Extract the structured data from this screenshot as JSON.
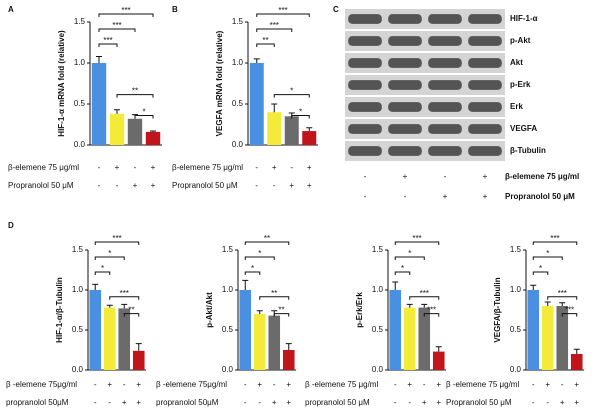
{
  "chart_data": [
    {
      "type": "bar",
      "panel": "A",
      "ylabel": "HIF-1-α mRNA fold (relative)",
      "values": [
        1.0,
        0.38,
        0.32,
        0.16
      ],
      "errors": [
        0.08,
        0.05,
        0.05,
        0.01
      ],
      "colors": [
        "#4a90e2",
        "#f4ea3a",
        "#6b6b6b",
        "#c0151b"
      ],
      "ylim": [
        0,
        1.5
      ],
      "yticks": [
        {
          "value": 0,
          "label": "0.0"
        },
        0.5,
        {
          "value": 1,
          "label": "1.0"
        },
        1.5
      ],
      "brackets": [
        {
          "pair": [
            0,
            3
          ],
          "label": "***"
        },
        {
          "pair": [
            0,
            2
          ],
          "label": "***"
        },
        {
          "pair": [
            0,
            1
          ],
          "label": "***"
        },
        {
          "pair": [
            1,
            3
          ],
          "label": "**"
        },
        {
          "pair": [
            2,
            3
          ],
          "label": "*"
        }
      ],
      "conditions": [
        {
          "label": "β-elemene 75 μg/ml",
          "signs": [
            "-",
            "+",
            "-",
            "+"
          ]
        },
        {
          "label": "Propranolol 50 μM",
          "signs": [
            "-",
            "-",
            "+",
            "+"
          ]
        }
      ]
    },
    {
      "type": "bar",
      "panel": "B",
      "ylabel": "VEGFA mRNA fold (relative)",
      "values": [
        1.0,
        0.4,
        0.35,
        0.17
      ],
      "errors": [
        0.05,
        0.1,
        0.04,
        0.04
      ],
      "colors": [
        "#4a90e2",
        "#f4ea3a",
        "#6b6b6b",
        "#c0151b"
      ],
      "ylim": [
        0,
        1.5
      ],
      "yticks": [
        {
          "value": 0,
          "label": "0.0"
        },
        0.5,
        {
          "value": 1,
          "label": "1.0"
        },
        1.5
      ],
      "brackets": [
        {
          "pair": [
            0,
            3
          ],
          "label": "***"
        },
        {
          "pair": [
            0,
            2
          ],
          "label": "***"
        },
        {
          "pair": [
            0,
            1
          ],
          "label": "**"
        },
        {
          "pair": [
            1,
            3
          ],
          "label": "*"
        },
        {
          "pair": [
            2,
            3
          ],
          "label": "*"
        }
      ],
      "conditions": [
        {
          "label": "β-elemene 75 μg/ml",
          "signs": [
            "-",
            "+",
            "-",
            "+"
          ]
        },
        {
          "label": "Propranolol 50 μM",
          "signs": [
            "-",
            "-",
            "+",
            "+"
          ]
        }
      ]
    },
    {
      "type": "blot",
      "panel": "C",
      "rows": [
        "HIF-1-α",
        "p-Akt",
        "Akt",
        "p-Erk",
        "Erk",
        "VEGFA",
        "β-Tubulin"
      ],
      "conditions": [
        {
          "label": "β-elemene 75 μg/ml",
          "signs": [
            "-",
            "+",
            "-",
            "+"
          ]
        },
        {
          "label": "Propranolol 50 μM",
          "signs": [
            "-",
            "-",
            "+",
            "+"
          ]
        }
      ]
    },
    {
      "type": "bar",
      "panel": "D",
      "ylabel": "HIF-1-α/β-Tubulin",
      "values": [
        1.0,
        0.78,
        0.77,
        0.24
      ],
      "errors": [
        0.07,
        0.03,
        0.05,
        0.09
      ],
      "colors": [
        "#4a90e2",
        "#f4ea3a",
        "#6b6b6b",
        "#c0151b"
      ],
      "ylim": [
        0,
        1.5
      ],
      "yticks": [
        {
          "value": 0,
          "label": "0.0"
        },
        0.5,
        {
          "value": 1,
          "label": "1.0"
        },
        1.5
      ],
      "brackets": [
        {
          "pair": [
            0,
            3
          ],
          "label": "***"
        },
        {
          "pair": [
            0,
            2
          ],
          "label": "*"
        },
        {
          "pair": [
            0,
            1
          ],
          "label": "*"
        },
        {
          "pair": [
            1,
            3
          ],
          "label": "***"
        },
        {
          "pair": [
            2,
            3
          ],
          "label": "**"
        }
      ],
      "conditions": [
        {
          "label": "β -elemene 75μg/ml",
          "signs": [
            "-",
            "+",
            "-",
            "+"
          ]
        },
        {
          "label": "propranolol 50μM",
          "signs": [
            "-",
            "-",
            "+",
            "+"
          ]
        }
      ]
    },
    {
      "type": "bar",
      "ylabel": "p-Akt/Akt",
      "values": [
        1.0,
        0.7,
        0.68,
        0.25
      ],
      "errors": [
        0.12,
        0.04,
        0.06,
        0.08
      ],
      "colors": [
        "#4a90e2",
        "#f4ea3a",
        "#6b6b6b",
        "#c0151b"
      ],
      "ylim": [
        0,
        1.5
      ],
      "yticks": [
        {
          "value": 0,
          "label": "0.0"
        },
        0.5,
        {
          "value": 1,
          "label": "1.0"
        },
        1.5
      ],
      "brackets": [
        {
          "pair": [
            0,
            3
          ],
          "label": "**"
        },
        {
          "pair": [
            0,
            2
          ],
          "label": "*"
        },
        {
          "pair": [
            0,
            1
          ],
          "label": "*"
        },
        {
          "pair": [
            1,
            3
          ],
          "label": "**"
        },
        {
          "pair": [
            2,
            3
          ],
          "label": "**"
        }
      ],
      "conditions": [
        {
          "label": "β -elemene 75μg/ml",
          "signs": [
            "-",
            "+",
            "-",
            "+"
          ]
        },
        {
          "label": "propranolol 50μM",
          "signs": [
            "-",
            "-",
            "+",
            "+"
          ]
        }
      ]
    },
    {
      "type": "bar",
      "ylabel": "p-Erk/Erk",
      "values": [
        1.0,
        0.78,
        0.78,
        0.23
      ],
      "errors": [
        0.1,
        0.04,
        0.04,
        0.06
      ],
      "colors": [
        "#4a90e2",
        "#f4ea3a",
        "#6b6b6b",
        "#c0151b"
      ],
      "ylim": [
        0,
        1.5
      ],
      "yticks": [
        {
          "value": 0,
          "label": "0.0"
        },
        0.5,
        {
          "value": 1,
          "label": "1.0"
        },
        1.5
      ],
      "brackets": [
        {
          "pair": [
            0,
            3
          ],
          "label": "***"
        },
        {
          "pair": [
            0,
            2
          ],
          "label": "*"
        },
        {
          "pair": [
            0,
            1
          ],
          "label": "*"
        },
        {
          "pair": [
            1,
            3
          ],
          "label": "***"
        },
        {
          "pair": [
            2,
            3
          ],
          "label": "***"
        }
      ],
      "conditions": [
        {
          "label": "β -elemene 75 μg/ml",
          "signs": [
            "-",
            "+",
            "-",
            "+"
          ]
        },
        {
          "label": "propranolol 50 μM",
          "signs": [
            "-",
            "-",
            "+",
            "+"
          ]
        }
      ]
    },
    {
      "type": "bar",
      "ylabel": "VEGFA/β-Tubulin",
      "values": [
        1.0,
        0.8,
        0.8,
        0.2
      ],
      "errors": [
        0.06,
        0.05,
        0.04,
        0.06
      ],
      "colors": [
        "#4a90e2",
        "#f4ea3a",
        "#6b6b6b",
        "#c0151b"
      ],
      "ylim": [
        0,
        1.5
      ],
      "yticks": [
        {
          "value": 0,
          "label": "0.0"
        },
        0.5,
        {
          "value": 1,
          "label": "1.0"
        },
        1.5
      ],
      "brackets": [
        {
          "pair": [
            0,
            3
          ],
          "label": "***"
        },
        {
          "pair": [
            0,
            2
          ],
          "label": "*"
        },
        {
          "pair": [
            0,
            1
          ],
          "label": "*"
        },
        {
          "pair": [
            1,
            3
          ],
          "label": "***"
        },
        {
          "pair": [
            2,
            3
          ],
          "label": "***"
        }
      ],
      "conditions": [
        {
          "label": "β -elemene 75 μg/ml",
          "signs": [
            "-",
            "+",
            "-",
            "+"
          ]
        },
        {
          "label": "Propranolol 50 μM",
          "signs": [
            "-",
            "-",
            "+",
            "+"
          ]
        }
      ]
    }
  ]
}
